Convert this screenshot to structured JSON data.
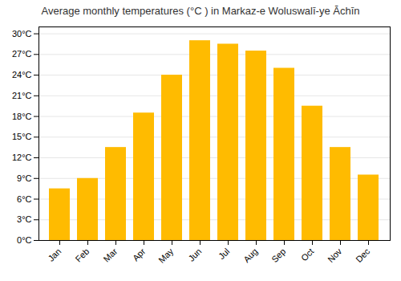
{
  "chart_data": {
    "type": "bar",
    "title": "Average monthly temperatures (°C ) in Markaz-e Woluswalī-ye Āchīn",
    "categories": [
      "Jan",
      "Feb",
      "Mar",
      "Apr",
      "May",
      "Jun",
      "Jul",
      "Aug",
      "Sep",
      "Oct",
      "Nov",
      "Dec"
    ],
    "values": [
      7.5,
      9.0,
      13.5,
      18.5,
      24.0,
      29.0,
      28.5,
      27.5,
      25.0,
      19.5,
      13.5,
      9.5
    ],
    "color": "#FFBB00",
    "ylim": [
      0,
      31
    ],
    "yticks": [
      {
        "value": 0,
        "label": "0°C"
      },
      {
        "value": 3,
        "label": "3°C"
      },
      {
        "value": 6,
        "label": "6°C"
      },
      {
        "value": 9,
        "label": "9°C"
      },
      {
        "value": 12,
        "label": "12°C"
      },
      {
        "value": 15,
        "label": "15°C"
      },
      {
        "value": 18,
        "label": "18°C"
      },
      {
        "value": 21,
        "label": "21°C"
      },
      {
        "value": 24,
        "label": "24°C"
      },
      {
        "value": 27,
        "label": "27°C"
      },
      {
        "value": 30,
        "label": "30°C"
      }
    ],
    "grid": true
  }
}
